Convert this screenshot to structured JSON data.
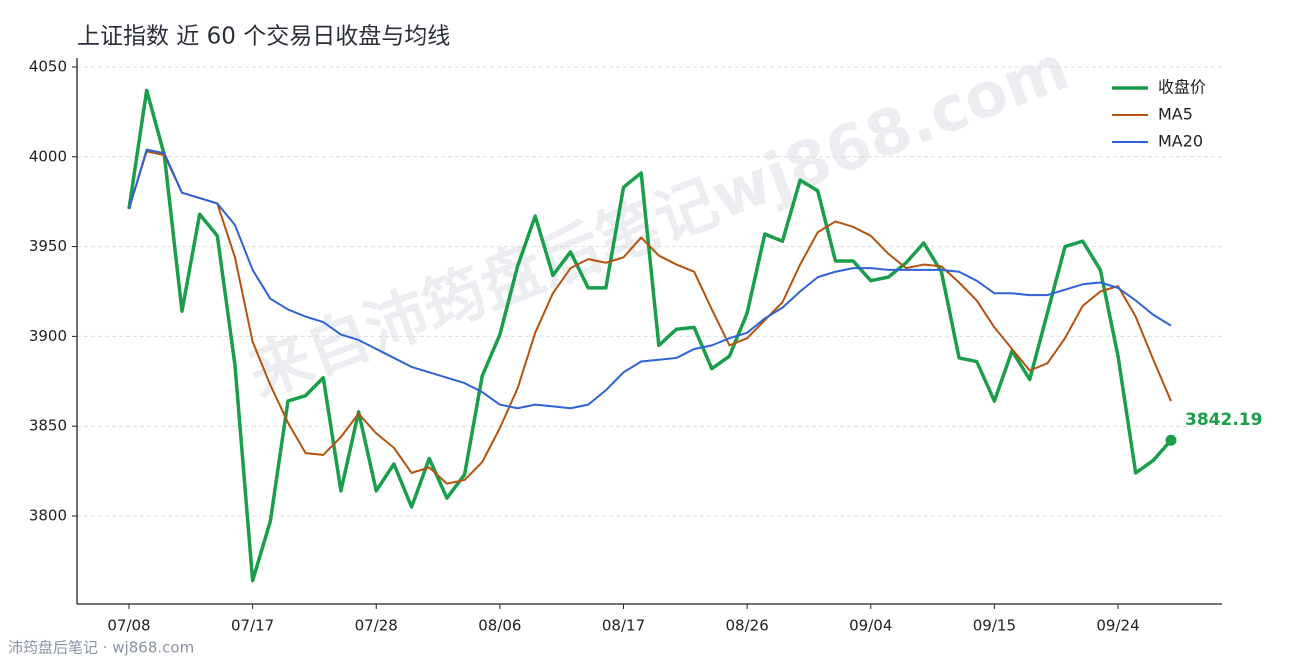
{
  "chart_data": {
    "type": "line",
    "title": "上证指数 近 60 个交易日收盘与均线",
    "categories": [
      "07/08",
      null,
      null,
      null,
      null,
      null,
      null,
      "07/17",
      null,
      null,
      null,
      null,
      null,
      null,
      "07/28",
      null,
      null,
      null,
      null,
      null,
      null,
      "08/06",
      null,
      null,
      null,
      null,
      null,
      null,
      "08/17",
      null,
      null,
      null,
      null,
      null,
      null,
      "08/26",
      null,
      null,
      null,
      null,
      null,
      null,
      "09/04",
      null,
      null,
      null,
      null,
      null,
      null,
      "09/15",
      null,
      null,
      null,
      null,
      null,
      null,
      "09/24",
      null,
      null,
      null
    ],
    "series": [
      {
        "name": "收盘价",
        "color": "#1a9e4a",
        "linewidth": 3.5,
        "label_last": true,
        "values": [
          3971,
          4037,
          4001,
          3914,
          3968,
          3956,
          3884,
          3764,
          3797,
          3864,
          3867,
          3877,
          3814,
          3858,
          3814,
          3829,
          3805,
          3832,
          3810,
          3823,
          3878,
          3901,
          3939,
          3967,
          3934,
          3947,
          3927,
          3927,
          3983,
          3991,
          3895,
          3904,
          3905,
          3882,
          3889,
          3913,
          3957,
          3953,
          3987,
          3981,
          3942,
          3942,
          3931,
          3933,
          3941,
          3952,
          3936,
          3888,
          3886,
          3864,
          3892,
          3876,
          3913,
          3950,
          3953,
          3937,
          3889,
          3824,
          3831,
          3842.19
        ]
      },
      {
        "name": "MA5",
        "color": "#b5520e",
        "linewidth": 2,
        "values": [
          3971,
          4003,
          4001,
          3980,
          3977,
          3974,
          3944,
          3897,
          3873,
          3852,
          3835,
          3834,
          3844,
          3857,
          3846,
          3838,
          3824,
          3827,
          3818,
          3820,
          3830,
          3849,
          3871,
          3902,
          3924,
          3938,
          3943,
          3941,
          3944,
          3955,
          3945,
          3940,
          3936,
          3915,
          3895,
          3899,
          3909,
          3919,
          3940,
          3958,
          3964,
          3961,
          3956,
          3946,
          3938,
          3940,
          3939,
          3930,
          3920,
          3905,
          3893,
          3881,
          3885,
          3899,
          3917,
          3925,
          3928,
          3911,
          3887,
          3864
        ]
      },
      {
        "name": "MA20",
        "color": "#2f62d6",
        "linewidth": 2,
        "values": [
          3971,
          4004,
          4002,
          3980,
          3977,
          3974,
          3962,
          3937,
          3921,
          3915,
          3911,
          3908,
          3901,
          3898,
          3893,
          3888,
          3883,
          3880,
          3877,
          3874,
          3869,
          3862,
          3860,
          3862,
          3861,
          3860,
          3862,
          3870,
          3880,
          3886,
          3887,
          3888,
          3893,
          3895,
          3899,
          3902,
          3910,
          3916,
          3925,
          3933,
          3936,
          3938,
          3938,
          3937,
          3937,
          3937,
          3937,
          3936,
          3931,
          3924,
          3924,
          3923,
          3923,
          3926,
          3929,
          3930,
          3927,
          3920,
          3912,
          3906
        ]
      }
    ],
    "ylim": [
      3751,
      4055
    ],
    "yticks": [
      3800,
      3850,
      3900,
      3950,
      4000,
      4050
    ],
    "grid": true,
    "legend": "upper right"
  },
  "watermark": "来自沛筠盘后笔记wj868.com",
  "footer": "沛筠盘后笔记 · wj868.com"
}
